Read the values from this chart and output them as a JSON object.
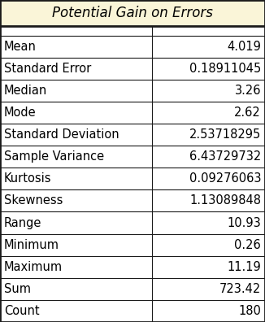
{
  "title": "Potential Gain on Errors",
  "title_bg": "#faf5d8",
  "rows": [
    [
      "Mean",
      "4.019"
    ],
    [
      "Standard Error",
      "0.18911045"
    ],
    [
      "Median",
      "3.26"
    ],
    [
      "Mode",
      "2.62"
    ],
    [
      "Standard Deviation",
      "2.53718295"
    ],
    [
      "Sample Variance",
      "6.43729732"
    ],
    [
      "Kurtosis",
      "0.09276063"
    ],
    [
      "Skewness",
      "1.13089848"
    ],
    [
      "Range",
      "10.93"
    ],
    [
      "Minimum",
      "0.26"
    ],
    [
      "Maximum",
      "11.19"
    ],
    [
      "Sum",
      "723.42"
    ],
    [
      "Count",
      "180"
    ]
  ],
  "col_split": 0.575,
  "outer_border_color": "#1a1a1a",
  "inner_line_color": "#1a1a1a",
  "bg_color": "#ffffff",
  "text_color": "#000000",
  "title_fontsize": 12,
  "cell_fontsize": 10.5
}
